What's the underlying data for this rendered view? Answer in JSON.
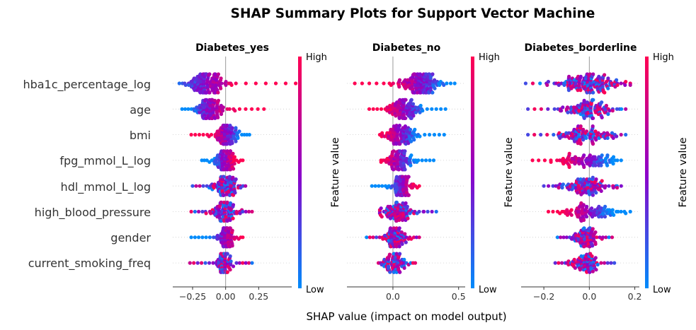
{
  "figure": {
    "title": "SHAP Summary Plots for Support Vector Machine",
    "xlabel": "SHAP value (impact on model output)",
    "colorbar_label": "Feature value",
    "colorbar_high": "High",
    "colorbar_low": "Low",
    "colors": {
      "low": "#008bfb",
      "mid": "#8f00c8",
      "high": "#ff0052",
      "zero_line": "#999999",
      "axis": "#333333"
    }
  },
  "chart_data": [
    {
      "type": "scatter",
      "title": "Diabetes_yes",
      "features": [
        "hba1c_percentage_log",
        "age",
        "bmi",
        "fpg_mmol_L_log",
        "hdl_mmol_L_log",
        "high_blood_pressure",
        "gender",
        "current_smoking_freq"
      ],
      "xlim": [
        -0.4,
        0.5
      ],
      "xticks": [
        -0.25,
        0.0,
        0.25
      ],
      "xtick_labels": [
        "−0.25",
        "0.00",
        "0.25"
      ],
      "series": [
        {
          "feature": "hba1c_percentage_log",
          "center": -0.14,
          "spread": 0.07,
          "min": -0.35,
          "max": 0.53,
          "tail_to": "high",
          "trend": "positive",
          "n": 160
        },
        {
          "feature": "age",
          "center": -0.12,
          "spread": 0.05,
          "min": -0.33,
          "max": 0.29,
          "tail_to": "high",
          "trend": "positive",
          "n": 120
        },
        {
          "feature": "bmi",
          "center": 0.01,
          "spread": 0.04,
          "min": -0.26,
          "max": 0.18,
          "tail_to": "low",
          "trend": "negative",
          "n": 110
        },
        {
          "feature": "fpg_mmol_L_log",
          "center": -0.01,
          "spread": 0.04,
          "min": -0.18,
          "max": 0.13,
          "tail_to": "none",
          "trend": "positive",
          "n": 100
        },
        {
          "feature": "hdl_mmol_L_log",
          "center": -0.01,
          "spread": 0.05,
          "min": -0.25,
          "max": 0.15,
          "tail_to": "none",
          "trend": "mixed",
          "n": 110
        },
        {
          "feature": "high_blood_pressure",
          "center": -0.01,
          "spread": 0.05,
          "min": -0.26,
          "max": 0.2,
          "tail_to": "none",
          "trend": "mixed",
          "n": 100
        },
        {
          "feature": "gender",
          "center": -0.01,
          "spread": 0.03,
          "min": -0.26,
          "max": 0.13,
          "tail_to": "none",
          "trend": "positive",
          "n": 90
        },
        {
          "feature": "current_smoking_freq",
          "center": -0.01,
          "spread": 0.03,
          "min": -0.27,
          "max": 0.2,
          "tail_to": "none",
          "trend": "mixed",
          "n": 90
        }
      ]
    },
    {
      "type": "scatter",
      "title": "Diabetes_no",
      "features": [
        "hba1c_percentage_log",
        "age",
        "bmi",
        "fpg_mmol_L_log",
        "hdl_mmol_L_log",
        "high_blood_pressure",
        "gender",
        "current_smoking_freq"
      ],
      "xlim": [
        -0.35,
        0.55
      ],
      "xticks": [
        0.0,
        0.5
      ],
      "xtick_labels": [
        "0.0",
        "0.5"
      ],
      "series": [
        {
          "feature": "hba1c_percentage_log",
          "center": 0.2,
          "spread": 0.08,
          "min": -0.29,
          "max": 0.47,
          "tail_to": "low",
          "trend": "negative",
          "n": 160
        },
        {
          "feature": "age",
          "center": 0.09,
          "spread": 0.06,
          "min": -0.18,
          "max": 0.4,
          "tail_to": "low",
          "trend": "negative",
          "n": 120
        },
        {
          "feature": "bmi",
          "center": 0.06,
          "spread": 0.06,
          "min": -0.1,
          "max": 0.39,
          "tail_to": "none",
          "trend": "negative",
          "n": 110
        },
        {
          "feature": "fpg_mmol_L_log",
          "center": 0.05,
          "spread": 0.05,
          "min": -0.09,
          "max": 0.31,
          "tail_to": "none",
          "trend": "negative",
          "n": 100
        },
        {
          "feature": "hdl_mmol_L_log",
          "center": 0.07,
          "spread": 0.03,
          "min": -0.16,
          "max": 0.2,
          "tail_to": "low",
          "trend": "positive",
          "n": 110
        },
        {
          "feature": "high_blood_pressure",
          "center": 0.04,
          "spread": 0.06,
          "min": -0.1,
          "max": 0.33,
          "tail_to": "none",
          "trend": "mixed",
          "n": 100
        },
        {
          "feature": "gender",
          "center": 0.02,
          "spread": 0.04,
          "min": -0.2,
          "max": 0.2,
          "tail_to": "none",
          "trend": "mixed",
          "n": 90
        },
        {
          "feature": "current_smoking_freq",
          "center": 0.02,
          "spread": 0.04,
          "min": -0.11,
          "max": 0.17,
          "tail_to": "none",
          "trend": "mixed",
          "n": 90
        }
      ]
    },
    {
      "type": "scatter",
      "title": "Diabetes_borderline",
      "features": [
        "hba1c_percentage_log",
        "age",
        "bmi",
        "fpg_mmol_L_log",
        "hdl_mmol_L_log",
        "high_blood_pressure",
        "gender",
        "current_smoking_freq"
      ],
      "xlim": [
        -0.3,
        0.22
      ],
      "xticks": [
        -0.2,
        0.0,
        0.2
      ],
      "xtick_labels": [
        "−0.2",
        "0.0",
        "0.2"
      ],
      "series": [
        {
          "feature": "hba1c_percentage_log",
          "center": 0.0,
          "spread": 0.06,
          "min": -0.28,
          "max": 0.18,
          "tail_to": "none",
          "trend": "mixed",
          "n": 160
        },
        {
          "feature": "age",
          "center": -0.01,
          "spread": 0.05,
          "min": -0.27,
          "max": 0.16,
          "tail_to": "none",
          "trend": "mixed",
          "n": 120
        },
        {
          "feature": "bmi",
          "center": -0.02,
          "spread": 0.06,
          "min": -0.27,
          "max": 0.16,
          "tail_to": "none",
          "trend": "mixed",
          "n": 110
        },
        {
          "feature": "fpg_mmol_L_log",
          "center": -0.01,
          "spread": 0.06,
          "min": -0.25,
          "max": 0.14,
          "tail_to": "none",
          "trend": "negative",
          "n": 100
        },
        {
          "feature": "hdl_mmol_L_log",
          "center": -0.02,
          "spread": 0.05,
          "min": -0.2,
          "max": 0.14,
          "tail_to": "none",
          "trend": "mixed",
          "n": 110
        },
        {
          "feature": "high_blood_pressure",
          "center": 0.0,
          "spread": 0.06,
          "min": -0.18,
          "max": 0.18,
          "tail_to": "none",
          "trend": "negative",
          "n": 100
        },
        {
          "feature": "gender",
          "center": -0.02,
          "spread": 0.03,
          "min": -0.14,
          "max": 0.1,
          "tail_to": "none",
          "trend": "mixed",
          "n": 90
        },
        {
          "feature": "current_smoking_freq",
          "center": -0.02,
          "spread": 0.03,
          "min": -0.15,
          "max": 0.11,
          "tail_to": "none",
          "trend": "mixed",
          "n": 90
        }
      ]
    }
  ]
}
